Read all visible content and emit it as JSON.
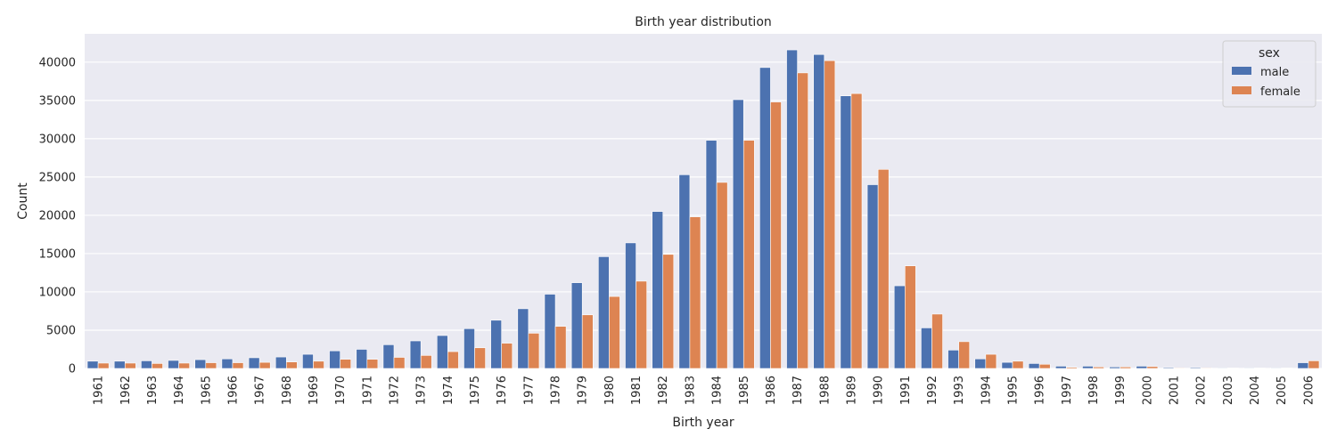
{
  "chart_data": {
    "type": "bar",
    "title": "Birth year distribution",
    "xlabel": "Birth year",
    "ylabel": "Count",
    "ylim": [
      0,
      43700
    ],
    "yticks": [
      0,
      5000,
      10000,
      15000,
      20000,
      25000,
      30000,
      35000,
      40000
    ],
    "grid": true,
    "legend": {
      "title": "sex",
      "placement": "top-right"
    },
    "categories": [
      "1961",
      "1962",
      "1963",
      "1964",
      "1965",
      "1966",
      "1967",
      "1968",
      "1969",
      "1970",
      "1971",
      "1972",
      "1973",
      "1974",
      "1975",
      "1976",
      "1977",
      "1978",
      "1979",
      "1980",
      "1981",
      "1982",
      "1983",
      "1984",
      "1985",
      "1986",
      "1987",
      "1988",
      "1989",
      "1990",
      "1991",
      "1992",
      "1993",
      "1994",
      "1995",
      "1996",
      "1997",
      "1998",
      "1999",
      "2000",
      "2001",
      "2002",
      "2003",
      "2004",
      "2005",
      "2006"
    ],
    "series": [
      {
        "name": "male",
        "color": "#4c72b0",
        "values": [
          950,
          950,
          1000,
          1050,
          1150,
          1250,
          1400,
          1500,
          1850,
          2300,
          2500,
          3100,
          3600,
          4300,
          5200,
          6300,
          7800,
          9700,
          11200,
          14600,
          16400,
          20500,
          25300,
          29800,
          35100,
          39300,
          41600,
          41000,
          35600,
          24000,
          10800,
          5300,
          2400,
          1250,
          800,
          650,
          300,
          300,
          200,
          300,
          120,
          120,
          80,
          80,
          80,
          750
        ]
      },
      {
        "name": "female",
        "color": "#dd8452",
        "values": [
          700,
          700,
          650,
          700,
          750,
          750,
          800,
          850,
          950,
          1200,
          1200,
          1450,
          1700,
          2200,
          2700,
          3300,
          4600,
          5500,
          7000,
          9400,
          11400,
          14900,
          19800,
          24300,
          29800,
          34800,
          38600,
          40200,
          35900,
          26000,
          13400,
          7100,
          3500,
          1850,
          950,
          550,
          150,
          200,
          200,
          250,
          80,
          80,
          60,
          60,
          60,
          1000
        ]
      }
    ]
  }
}
